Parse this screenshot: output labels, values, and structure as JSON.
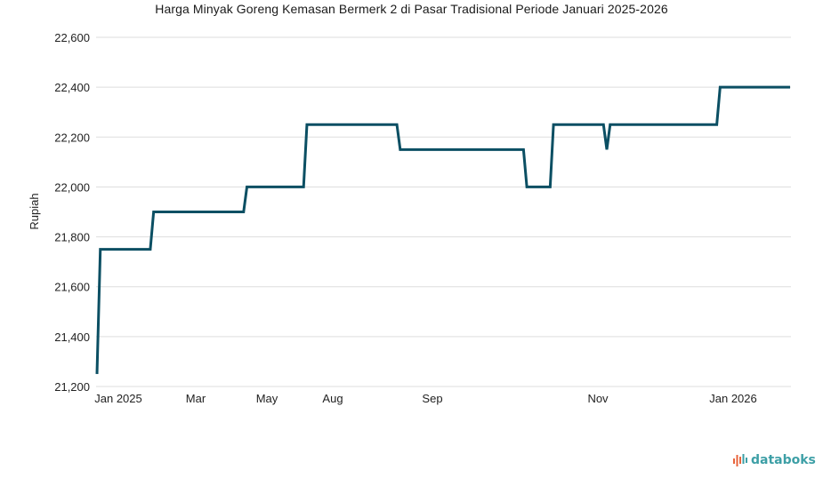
{
  "chart_data": {
    "type": "line",
    "title": "Harga Minyak Goreng Kemasan Bermerk 2 di Pasar Tradisional Periode Januari 2025-2026",
    "xlabel": "",
    "ylabel": "Rupiah",
    "ylim": [
      21200,
      22600
    ],
    "yticks": [
      "21,200",
      "21,400",
      "21,600",
      "21,800",
      "22,000",
      "22,200",
      "22,400",
      "22,600"
    ],
    "xticks": [
      "Jan 2025",
      "Mar",
      "May",
      "Aug",
      "Sep",
      "Nov",
      "Jan 2026"
    ],
    "grid": true,
    "line_color": "#0b4f63",
    "series": [
      {
        "values": [
          21250,
          21750,
          21750,
          21750,
          21750,
          21750,
          21750,
          21750,
          21750,
          21750,
          21750,
          21750,
          21750,
          21750,
          21750,
          21750,
          21750,
          21900,
          21900,
          21900,
          21900,
          21900,
          21900,
          21900,
          21900,
          21900,
          21900,
          21900,
          21900,
          21900,
          21900,
          21900,
          21900,
          21900,
          21900,
          21900,
          21900,
          21900,
          21900,
          21900,
          21900,
          21900,
          21900,
          21900,
          21900,
          22000,
          22000,
          22000,
          22000,
          22000,
          22000,
          22000,
          22000,
          22000,
          22000,
          22000,
          22000,
          22000,
          22000,
          22000,
          22000,
          22000,
          22000,
          22250,
          22250,
          22250,
          22250,
          22250,
          22250,
          22250,
          22250,
          22250,
          22250,
          22250,
          22250,
          22250,
          22250,
          22250,
          22250,
          22250,
          22250,
          22250,
          22250,
          22250,
          22250,
          22250,
          22250,
          22250,
          22250,
          22250,
          22250,
          22150,
          22150,
          22150,
          22150,
          22150,
          22150,
          22150,
          22150,
          22150,
          22150,
          22150,
          22150,
          22150,
          22150,
          22150,
          22150,
          22150,
          22150,
          22150,
          22150,
          22150,
          22150,
          22150,
          22150,
          22150,
          22150,
          22150,
          22150,
          22150,
          22150,
          22150,
          22150,
          22150,
          22150,
          22150,
          22150,
          22150,
          22150,
          22000,
          22000,
          22000,
          22000,
          22000,
          22000,
          22000,
          22000,
          22250,
          22250,
          22250,
          22250,
          22250,
          22250,
          22250,
          22250,
          22250,
          22250,
          22250,
          22250,
          22250,
          22250,
          22250,
          22250,
          22150,
          22250,
          22250,
          22250,
          22250,
          22250,
          22250,
          22250,
          22250,
          22250,
          22250,
          22250,
          22250,
          22250,
          22250,
          22250,
          22250,
          22250,
          22250,
          22250,
          22250,
          22250,
          22250,
          22250,
          22250,
          22250,
          22250,
          22250,
          22250,
          22250,
          22250,
          22250,
          22250,
          22250,
          22400,
          22400,
          22400,
          22400,
          22400,
          22400,
          22400,
          22400,
          22400,
          22400,
          22400,
          22400,
          22400,
          22400,
          22400,
          22400,
          22400,
          22400,
          22400,
          22400,
          22400,
          22400
        ]
      }
    ]
  },
  "brand": {
    "name": "databoks",
    "color": "#3d9fa6",
    "accent": "#e8643c"
  }
}
